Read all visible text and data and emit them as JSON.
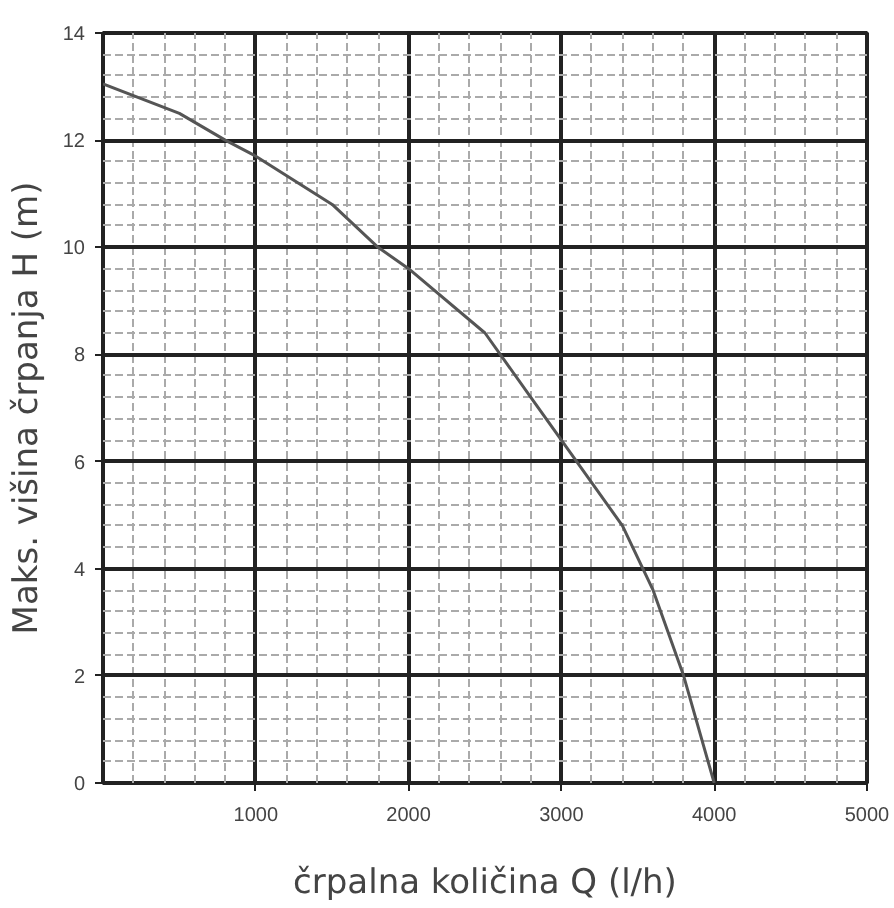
{
  "chart_data": {
    "type": "line",
    "xlabel": "črpalna količina Q (l/h)",
    "ylabel": "Maks. višina črpanja H (m)",
    "x": [
      0,
      500,
      800,
      1000,
      1500,
      1800,
      2000,
      2500,
      2800,
      3000,
      3400,
      3600,
      3800,
      4000
    ],
    "series": [
      {
        "color": "#555555",
        "values": [
          13.05,
          12.5,
          12.0,
          11.7,
          10.8,
          10.0,
          9.6,
          8.4,
          7.2,
          6.4,
          4.8,
          3.6,
          2.0,
          0
        ]
      }
    ],
    "xlim": [
      0,
      5000
    ],
    "ylim": [
      0,
      14
    ],
    "xticks": [
      1000,
      2000,
      3000,
      4000,
      5000
    ],
    "yticks": [
      0,
      2,
      4,
      6,
      8,
      10,
      12,
      14
    ],
    "grid": true,
    "marker": "none",
    "line_style": "solid"
  }
}
